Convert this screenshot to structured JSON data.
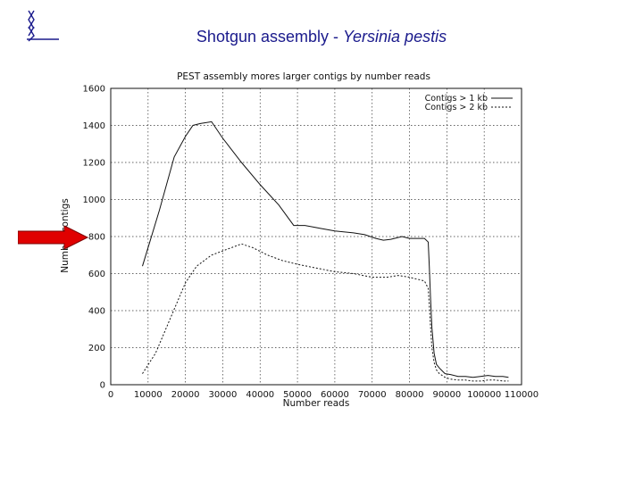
{
  "slide": {
    "title_plain": "Shotgun assembly - ",
    "title_italic": "Yersinia pestis"
  },
  "arrow_color": "#e00000",
  "logo_color": "#1a1a8c",
  "chart_data": {
    "type": "line",
    "title": "PEST assembly mores larger contigs by number reads",
    "xlabel": "Number reads",
    "ylabel": "Number contigs",
    "xlim": [
      0,
      110000
    ],
    "ylim": [
      0,
      1600
    ],
    "xticks": [
      0,
      10000,
      20000,
      30000,
      40000,
      50000,
      60000,
      70000,
      80000,
      90000,
      100000,
      110000
    ],
    "yticks": [
      0,
      200,
      400,
      600,
      800,
      1000,
      1200,
      1400,
      1600
    ],
    "grid": true,
    "legend": "top-right",
    "series": [
      {
        "name": "Contigs > 1 kb",
        "style": "solid",
        "x": [
          8500,
          13000,
          17000,
          20000,
          22000,
          24000,
          27000,
          30000,
          35000,
          40000,
          45000,
          49000,
          52000,
          56000,
          60000,
          65000,
          68000,
          71000,
          73000,
          75000,
          78000,
          80000,
          82000,
          84000,
          85000,
          85300,
          85600,
          86000,
          86600,
          87200,
          88000,
          89500,
          91000,
          93000,
          95000,
          97000,
          99000,
          101000,
          103000,
          105000,
          106500
        ],
        "y": [
          640,
          940,
          1230,
          1340,
          1400,
          1410,
          1420,
          1330,
          1200,
          1080,
          970,
          860,
          860,
          845,
          830,
          820,
          810,
          790,
          780,
          785,
          800,
          790,
          790,
          790,
          770,
          640,
          480,
          310,
          170,
          110,
          90,
          60,
          55,
          45,
          45,
          40,
          45,
          50,
          45,
          45,
          40
        ]
      },
      {
        "name": "Contigs > 2 kb",
        "style": "dashed",
        "x": [
          8500,
          12000,
          16000,
          20000,
          23000,
          27000,
          31000,
          35000,
          38000,
          42000,
          46000,
          50000,
          55000,
          60000,
          65000,
          70000,
          74000,
          77000,
          80000,
          82000,
          84000,
          85000,
          85300,
          85600,
          86000,
          86600,
          87200,
          88000,
          89500,
          91000,
          93000,
          95000,
          97000,
          99000,
          101000,
          103000,
          105000,
          106500
        ],
        "y": [
          60,
          170,
          360,
          550,
          640,
          700,
          730,
          760,
          740,
          700,
          670,
          650,
          630,
          610,
          600,
          580,
          580,
          590,
          580,
          570,
          560,
          520,
          430,
          320,
          200,
          120,
          80,
          60,
          40,
          30,
          25,
          25,
          20,
          20,
          25,
          25,
          20,
          20
        ]
      }
    ]
  }
}
